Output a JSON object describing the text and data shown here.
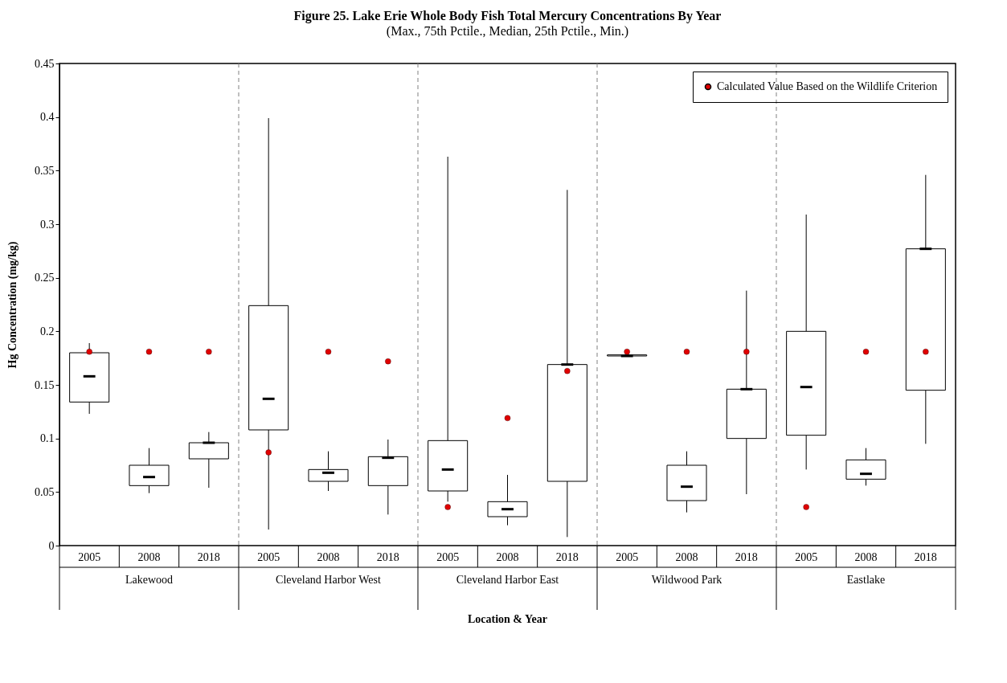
{
  "chart_data": {
    "type": "box",
    "title": "Figure 25. Lake Erie Whole Body Fish Total Mercury Concentrations By Year",
    "subtitle": "(Max., 75th Pctile., Median, 25th Pctile., Min.)",
    "xlabel": "Location & Year",
    "ylabel": "Hg Concentration (mg/kg)",
    "categories": [
      "2005",
      "2008",
      "2018",
      "2005",
      "2008",
      "2018",
      "2005",
      "2008",
      "2018",
      "2005",
      "2008",
      "2018",
      "2005",
      "2008",
      "2018"
    ],
    "annotations": [
      "Lakewood",
      "Cleveland Harbor West",
      "Cleveland Harbor East",
      "Wildwood Park",
      "Eastlake"
    ],
    "ylim": [
      0,
      0.45
    ],
    "yticks": [
      0,
      0.05,
      0.1,
      0.15,
      0.2,
      0.25,
      0.3,
      0.35,
      0.4,
      0.45
    ],
    "grid": "x",
    "legend": "top right",
    "boxes": [
      {
        "low": 0.123,
        "q1": 0.134,
        "median": 0.158,
        "q3": 0.18,
        "high": 0.189
      },
      {
        "low": 0.049,
        "q1": 0.056,
        "median": 0.064,
        "q3": 0.075,
        "high": 0.091
      },
      {
        "low": 0.054,
        "q1": 0.081,
        "median": 0.096,
        "q3": 0.096,
        "high": 0.106
      },
      {
        "low": 0.015,
        "q1": 0.108,
        "median": 0.137,
        "q3": 0.224,
        "high": 0.399
      },
      {
        "low": 0.051,
        "q1": 0.06,
        "median": 0.068,
        "q3": 0.071,
        "high": 0.088
      },
      {
        "low": 0.029,
        "q1": 0.056,
        "median": 0.082,
        "q3": 0.083,
        "high": 0.099
      },
      {
        "low": 0.041,
        "q1": 0.051,
        "median": 0.071,
        "q3": 0.098,
        "high": 0.363
      },
      {
        "low": 0.019,
        "q1": 0.027,
        "median": 0.034,
        "q3": 0.041,
        "high": 0.066
      },
      {
        "low": 0.008,
        "q1": 0.06,
        "median": 0.169,
        "q3": 0.169,
        "high": 0.332
      },
      {
        "low": 0.177,
        "q1": 0.177,
        "median": 0.177,
        "q3": 0.178,
        "high": 0.178
      },
      {
        "low": 0.031,
        "q1": 0.042,
        "median": 0.055,
        "q3": 0.075,
        "high": 0.088
      },
      {
        "low": 0.048,
        "q1": 0.1,
        "median": 0.146,
        "q3": 0.146,
        "high": 0.238
      },
      {
        "low": 0.071,
        "q1": 0.103,
        "median": 0.148,
        "q3": 0.2,
        "high": 0.309
      },
      {
        "low": 0.056,
        "q1": 0.062,
        "median": 0.067,
        "q3": 0.08,
        "high": 0.091
      },
      {
        "low": 0.095,
        "q1": 0.145,
        "median": 0.277,
        "q3": 0.277,
        "high": 0.346
      }
    ],
    "series": [
      {
        "type": "scatter",
        "name": "Calculated Value Based on the Wildlife Criterion",
        "color": "#e00000",
        "marker": "circle",
        "values": [
          0.181,
          0.181,
          0.181,
          0.087,
          0.181,
          0.172,
          0.036,
          0.119,
          0.163,
          0.181,
          0.181,
          0.181,
          0.036,
          0.181,
          0.181
        ]
      }
    ]
  }
}
